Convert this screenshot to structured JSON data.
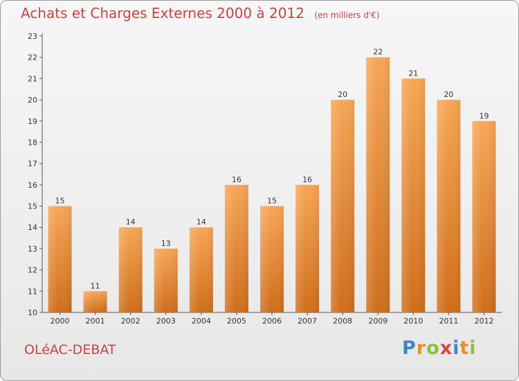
{
  "header": {
    "title": "Achats et Charges Externes 2000 à 2012",
    "unit": "(en milliers d'€)"
  },
  "footer": {
    "commune": "OLéAC-DEBAT",
    "logo": [
      "P",
      "r",
      "o",
      "x",
      "i",
      "t",
      "i"
    ]
  },
  "colors": {
    "title": "#c14444",
    "bar_top": "#f7a656",
    "bar_bottom": "#cf6e1c",
    "axis": "#555555"
  },
  "chart_data": {
    "type": "bar",
    "categories": [
      "2000",
      "2001",
      "2002",
      "2003",
      "2004",
      "2005",
      "2006",
      "2007",
      "2008",
      "2009",
      "2010",
      "2011",
      "2012"
    ],
    "values": [
      15,
      11,
      14,
      13,
      14,
      16,
      15,
      16,
      20,
      22,
      21,
      20,
      19
    ],
    "data_labels": [
      "15",
      "11",
      "14",
      "13",
      "14",
      "16",
      "15",
      "16",
      "20",
      "22",
      "21",
      "20",
      "19"
    ],
    "yticks": [
      "10",
      "11",
      "12",
      "13",
      "14",
      "15",
      "16",
      "17",
      "18",
      "19",
      "20",
      "21",
      "22",
      "23"
    ],
    "ylim": [
      10,
      23
    ],
    "title": "Achats et Charges Externes 2000 à 2012",
    "xlabel": "",
    "ylabel": "",
    "grid": false,
    "legend": "none"
  }
}
